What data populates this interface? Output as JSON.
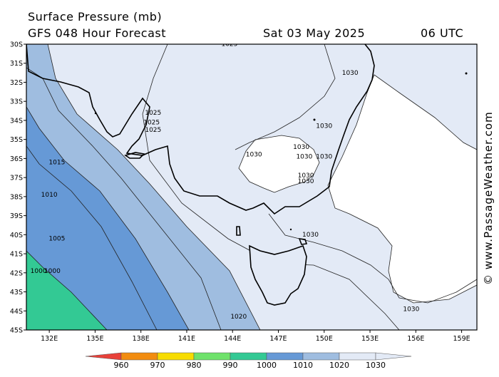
{
  "header": {
    "title": "Surface Pressure (mb)",
    "product": "GFS 048 Hour Forecast",
    "date": "Sat 03 May 2025",
    "time": "06 UTC"
  },
  "credit": "© www.PassageWeather.com",
  "axes": {
    "lat_labels": [
      "30S",
      "31S",
      "32S",
      "33S",
      "34S",
      "35S",
      "36S",
      "37S",
      "38S",
      "39S",
      "40S",
      "41S",
      "42S",
      "43S",
      "44S",
      "45S"
    ],
    "lon_labels": [
      "132E",
      "135E",
      "138E",
      "141E",
      "144E",
      "147E",
      "150E",
      "153E",
      "156E",
      "159E"
    ]
  },
  "isobar_labels": [
    {
      "text": "1025",
      "lat": -30.1,
      "lon": 143.8
    },
    {
      "text": "1030",
      "lat": -31.6,
      "lon": 151.7
    },
    {
      "text": "1025",
      "lat": -33.7,
      "lon": 138.8
    },
    {
      "text": "1025",
      "lat": -34.2,
      "lon": 138.7
    },
    {
      "text": "1025",
      "lat": -34.6,
      "lon": 138.8
    },
    {
      "text": "1030",
      "lat": -34.4,
      "lon": 150.0
    },
    {
      "text": "1030",
      "lat": -35.9,
      "lon": 145.4
    },
    {
      "text": "1030",
      "lat": -35.5,
      "lon": 148.5
    },
    {
      "text": "1030",
      "lat": -36.0,
      "lon": 150.0
    },
    {
      "text": "1030",
      "lat": -36.0,
      "lon": 148.7
    },
    {
      "text": "1030",
      "lat": -37.0,
      "lon": 148.8
    },
    {
      "text": "1030",
      "lat": -37.3,
      "lon": 148.8
    },
    {
      "text": "1030",
      "lat": -40.1,
      "lon": 149.1
    },
    {
      "text": "1030",
      "lat": -44.0,
      "lon": 155.7
    },
    {
      "text": "1015",
      "lat": -36.3,
      "lon": 132.5
    },
    {
      "text": "1010",
      "lat": -38.0,
      "lon": 132.0
    },
    {
      "text": "1005",
      "lat": -40.3,
      "lon": 132.5
    },
    {
      "text": "1000",
      "lat": -42.0,
      "lon": 131.3
    },
    {
      "text": "1000",
      "lat": -42.0,
      "lon": 132.2
    },
    {
      "text": "1020",
      "lat": -44.4,
      "lon": 144.4
    }
  ],
  "legend": {
    "labels": [
      "960",
      "970",
      "980",
      "990",
      "1000",
      "1010",
      "1020",
      "1030"
    ],
    "colors": [
      "#e8413a",
      "#f28c0f",
      "#f7dc00",
      "#6fe26b",
      "#33c994",
      "#6699d6",
      "#9fbde0",
      "#e3eaf6"
    ]
  }
}
